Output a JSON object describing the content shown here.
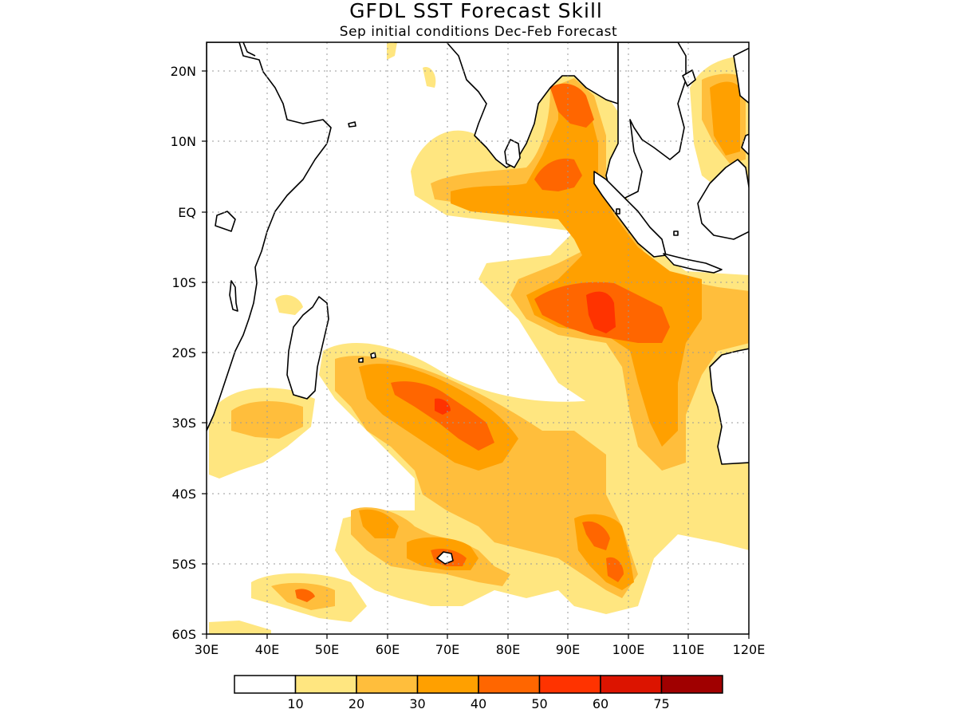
{
  "title": "GFDL SST Forecast Skill",
  "subtitle": "Sep initial conditions  Dec-Feb Forecast",
  "map": {
    "lon_range": [
      30,
      120
    ],
    "lat_range": [
      -60,
      24
    ],
    "lon_ticks": [
      "30E",
      "40E",
      "50E",
      "60E",
      "70E",
      "80E",
      "90E",
      "100E",
      "110E",
      "120E"
    ],
    "lat_ticks": [
      "20N",
      "10N",
      "EQ",
      "10S",
      "20S",
      "30S",
      "40S",
      "50S",
      "60S"
    ],
    "grid": true
  },
  "legend": {
    "colors": [
      "#ffffff",
      "#ffe680",
      "#ffbe3c",
      "#ffa000",
      "#ff6600",
      "#ff3300",
      "#dc1400",
      "#a00000"
    ],
    "labels": [
      "10",
      "20",
      "30",
      "40",
      "50",
      "60",
      "75"
    ]
  }
}
